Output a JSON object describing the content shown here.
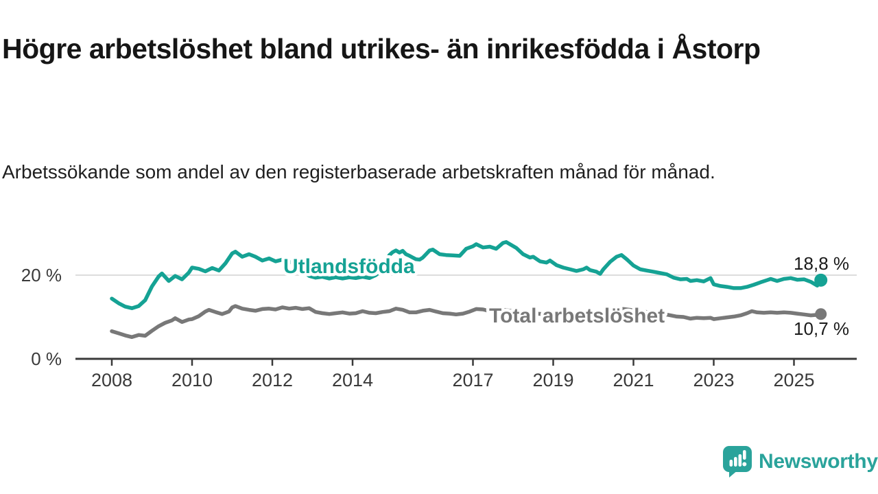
{
  "title": "Högre arbetslöshet bland utrikes- än inrikesfödda i Åstorp",
  "subtitle": "Arbetssökande som andel av den registerbaserade arbetskraften månad för månad.",
  "branding": {
    "logo_text": "Newsworthy",
    "logo_icon": "newsworthy-speech-bubble-bar-chart-icon",
    "logo_color": "#2aa39b"
  },
  "chart_data": {
    "type": "line",
    "title": "Högre arbetslöshet bland utrikes- än inrikesfödda i Åstorp",
    "subtitle": "Arbetssökande som andel av den registerbaserade arbetskraften månad för månad.",
    "unit": "%",
    "xlim": [
      2007.1,
      2026.55
    ],
    "ylim": [
      0,
      31.6
    ],
    "grid": "single-horizontal-gridline-at-20",
    "gridlines": [
      20
    ],
    "gridline_color": "#dcdcdc",
    "axis_color": "#3a3a3a",
    "x_ticks": [
      2008,
      2010,
      2012,
      2014,
      2017,
      2019,
      2021,
      2023,
      2025
    ],
    "y_ticks": [
      {
        "value": 20,
        "label": "20 %"
      },
      {
        "value": 0,
        "label": "0 %"
      }
    ],
    "legend_position": "inline-labels-on-lines",
    "series": [
      {
        "name": "Utlandsfödda",
        "color": "#15a294",
        "end_label": "18,8 %",
        "end_value": 18.8,
        "points": [
          [
            2008.0,
            14.4
          ],
          [
            2008.17,
            13.3
          ],
          [
            2008.33,
            12.5
          ],
          [
            2008.5,
            12.1
          ],
          [
            2008.67,
            12.6
          ],
          [
            2008.83,
            14.0
          ],
          [
            2009.0,
            17.3
          ],
          [
            2009.17,
            19.7
          ],
          [
            2009.25,
            20.4
          ],
          [
            2009.42,
            18.6
          ],
          [
            2009.58,
            19.8
          ],
          [
            2009.75,
            19.0
          ],
          [
            2009.92,
            20.6
          ],
          [
            2010.0,
            21.8
          ],
          [
            2010.17,
            21.5
          ],
          [
            2010.33,
            20.9
          ],
          [
            2010.5,
            21.7
          ],
          [
            2010.67,
            21.1
          ],
          [
            2010.83,
            22.8
          ],
          [
            2011.0,
            25.2
          ],
          [
            2011.08,
            25.6
          ],
          [
            2011.25,
            24.4
          ],
          [
            2011.42,
            25.0
          ],
          [
            2011.58,
            24.4
          ],
          [
            2011.75,
            23.5
          ],
          [
            2011.92,
            24.0
          ],
          [
            2012.08,
            23.3
          ],
          [
            2012.25,
            23.7
          ],
          [
            2012.42,
            23.0
          ],
          [
            2012.58,
            23.4
          ],
          [
            2012.75,
            21.0
          ],
          [
            2012.92,
            19.8
          ],
          [
            2013.08,
            19.4
          ],
          [
            2013.25,
            19.6
          ],
          [
            2013.42,
            19.2
          ],
          [
            2013.58,
            19.5
          ],
          [
            2013.75,
            19.2
          ],
          [
            2013.92,
            19.5
          ],
          [
            2014.08,
            19.3
          ],
          [
            2014.25,
            19.6
          ],
          [
            2014.42,
            19.3
          ],
          [
            2014.58,
            20.0
          ],
          [
            2014.75,
            21.5
          ],
          [
            2014.83,
            23.5
          ],
          [
            2014.92,
            24.8
          ],
          [
            2015.0,
            25.5
          ],
          [
            2015.08,
            25.9
          ],
          [
            2015.17,
            25.4
          ],
          [
            2015.25,
            25.8
          ],
          [
            2015.33,
            25.0
          ],
          [
            2015.42,
            24.6
          ],
          [
            2015.5,
            24.2
          ],
          [
            2015.58,
            23.8
          ],
          [
            2015.67,
            23.7
          ],
          [
            2015.75,
            24.2
          ],
          [
            2015.83,
            25.0
          ],
          [
            2015.92,
            25.9
          ],
          [
            2016.0,
            26.1
          ],
          [
            2016.17,
            25.0
          ],
          [
            2016.33,
            24.8
          ],
          [
            2016.5,
            24.7
          ],
          [
            2016.67,
            24.6
          ],
          [
            2016.83,
            26.3
          ],
          [
            2017.0,
            26.9
          ],
          [
            2017.08,
            27.4
          ],
          [
            2017.25,
            26.6
          ],
          [
            2017.42,
            26.8
          ],
          [
            2017.58,
            26.3
          ],
          [
            2017.75,
            27.7
          ],
          [
            2017.83,
            27.9
          ],
          [
            2017.92,
            27.4
          ],
          [
            2018.08,
            26.5
          ],
          [
            2018.25,
            25.0
          ],
          [
            2018.42,
            24.2
          ],
          [
            2018.5,
            24.4
          ],
          [
            2018.67,
            23.3
          ],
          [
            2018.83,
            23.0
          ],
          [
            2018.92,
            23.5
          ],
          [
            2019.08,
            22.4
          ],
          [
            2019.25,
            21.8
          ],
          [
            2019.42,
            21.4
          ],
          [
            2019.58,
            21.0
          ],
          [
            2019.75,
            21.4
          ],
          [
            2019.83,
            21.8
          ],
          [
            2019.92,
            21.2
          ],
          [
            2020.08,
            20.8
          ],
          [
            2020.17,
            20.3
          ],
          [
            2020.25,
            21.4
          ],
          [
            2020.42,
            23.2
          ],
          [
            2020.58,
            24.4
          ],
          [
            2020.7,
            24.8
          ],
          [
            2020.83,
            23.8
          ],
          [
            2021.0,
            22.3
          ],
          [
            2021.17,
            21.4
          ],
          [
            2021.33,
            21.1
          ],
          [
            2021.5,
            20.8
          ],
          [
            2021.67,
            20.5
          ],
          [
            2021.83,
            20.2
          ],
          [
            2022.0,
            19.4
          ],
          [
            2022.17,
            19.0
          ],
          [
            2022.33,
            19.1
          ],
          [
            2022.42,
            18.6
          ],
          [
            2022.58,
            18.8
          ],
          [
            2022.75,
            18.5
          ],
          [
            2022.92,
            19.3
          ],
          [
            2023.0,
            17.8
          ],
          [
            2023.17,
            17.4
          ],
          [
            2023.33,
            17.2
          ],
          [
            2023.5,
            16.9
          ],
          [
            2023.67,
            16.9
          ],
          [
            2023.83,
            17.2
          ],
          [
            2024.0,
            17.7
          ],
          [
            2024.17,
            18.3
          ],
          [
            2024.33,
            18.8
          ],
          [
            2024.42,
            19.1
          ],
          [
            2024.58,
            18.6
          ],
          [
            2024.75,
            19.1
          ],
          [
            2024.92,
            19.3
          ],
          [
            2025.08,
            18.9
          ],
          [
            2025.25,
            19.0
          ],
          [
            2025.42,
            18.4
          ],
          [
            2025.58,
            17.5
          ],
          [
            2025.67,
            18.8
          ]
        ]
      },
      {
        "name": "Total arbetslöshet",
        "color": "#787878",
        "end_label": "10,7 %",
        "end_value": 10.7,
        "points": [
          [
            2008.0,
            6.6
          ],
          [
            2008.17,
            6.1
          ],
          [
            2008.33,
            5.6
          ],
          [
            2008.5,
            5.2
          ],
          [
            2008.67,
            5.7
          ],
          [
            2008.83,
            5.5
          ],
          [
            2009.0,
            6.7
          ],
          [
            2009.17,
            7.8
          ],
          [
            2009.33,
            8.6
          ],
          [
            2009.5,
            9.2
          ],
          [
            2009.58,
            9.7
          ],
          [
            2009.75,
            8.8
          ],
          [
            2009.92,
            9.4
          ],
          [
            2010.0,
            9.5
          ],
          [
            2010.17,
            10.2
          ],
          [
            2010.33,
            11.3
          ],
          [
            2010.42,
            11.7
          ],
          [
            2010.58,
            11.2
          ],
          [
            2010.75,
            10.7
          ],
          [
            2010.92,
            11.3
          ],
          [
            2011.0,
            12.3
          ],
          [
            2011.08,
            12.6
          ],
          [
            2011.25,
            12.0
          ],
          [
            2011.42,
            11.7
          ],
          [
            2011.58,
            11.5
          ],
          [
            2011.75,
            11.9
          ],
          [
            2011.92,
            12.0
          ],
          [
            2012.08,
            11.8
          ],
          [
            2012.25,
            12.3
          ],
          [
            2012.42,
            12.0
          ],
          [
            2012.58,
            12.2
          ],
          [
            2012.75,
            11.9
          ],
          [
            2012.92,
            12.1
          ],
          [
            2013.08,
            11.2
          ],
          [
            2013.25,
            10.9
          ],
          [
            2013.42,
            10.7
          ],
          [
            2013.58,
            10.9
          ],
          [
            2013.75,
            11.1
          ],
          [
            2013.92,
            10.8
          ],
          [
            2014.08,
            10.9
          ],
          [
            2014.25,
            11.4
          ],
          [
            2014.42,
            11.0
          ],
          [
            2014.58,
            10.9
          ],
          [
            2014.75,
            11.2
          ],
          [
            2014.92,
            11.4
          ],
          [
            2015.08,
            12.0
          ],
          [
            2015.25,
            11.7
          ],
          [
            2015.42,
            11.1
          ],
          [
            2015.58,
            11.1
          ],
          [
            2015.75,
            11.5
          ],
          [
            2015.92,
            11.7
          ],
          [
            2016.08,
            11.3
          ],
          [
            2016.25,
            10.9
          ],
          [
            2016.42,
            10.8
          ],
          [
            2016.58,
            10.6
          ],
          [
            2016.75,
            10.8
          ],
          [
            2016.92,
            11.3
          ],
          [
            2017.08,
            11.9
          ],
          [
            2017.25,
            11.8
          ],
          [
            2017.42,
            11.4
          ],
          [
            2017.58,
            11.5
          ],
          [
            2017.75,
            11.7
          ],
          [
            2017.92,
            11.5
          ],
          [
            2018.08,
            11.3
          ],
          [
            2018.25,
            11.1
          ],
          [
            2018.42,
            10.9
          ],
          [
            2018.58,
            10.8
          ],
          [
            2018.75,
            10.7
          ],
          [
            2018.92,
            10.8
          ],
          [
            2019.08,
            10.6
          ],
          [
            2019.25,
            10.4
          ],
          [
            2019.42,
            10.3
          ],
          [
            2019.58,
            10.4
          ],
          [
            2019.75,
            10.5
          ],
          [
            2019.92,
            10.6
          ],
          [
            2020.08,
            10.8
          ],
          [
            2020.25,
            11.2
          ],
          [
            2020.42,
            11.6
          ],
          [
            2020.58,
            11.8
          ],
          [
            2020.75,
            11.9
          ],
          [
            2020.92,
            11.7
          ],
          [
            2021.08,
            11.5
          ],
          [
            2021.25,
            11.3
          ],
          [
            2021.42,
            11.1
          ],
          [
            2021.58,
            10.9
          ],
          [
            2021.75,
            10.7
          ],
          [
            2021.92,
            10.4
          ],
          [
            2022.08,
            10.1
          ],
          [
            2022.25,
            10.0
          ],
          [
            2022.42,
            9.6
          ],
          [
            2022.58,
            9.8
          ],
          [
            2022.75,
            9.7
          ],
          [
            2022.92,
            9.8
          ],
          [
            2023.0,
            9.5
          ],
          [
            2023.17,
            9.7
          ],
          [
            2023.33,
            9.9
          ],
          [
            2023.5,
            10.1
          ],
          [
            2023.67,
            10.4
          ],
          [
            2023.83,
            10.9
          ],
          [
            2023.95,
            11.4
          ],
          [
            2024.08,
            11.1
          ],
          [
            2024.25,
            11.0
          ],
          [
            2024.42,
            11.1
          ],
          [
            2024.58,
            11.0
          ],
          [
            2024.75,
            11.1
          ],
          [
            2024.92,
            11.0
          ],
          [
            2025.08,
            10.8
          ],
          [
            2025.25,
            10.6
          ],
          [
            2025.42,
            10.4
          ],
          [
            2025.58,
            10.5
          ],
          [
            2025.67,
            10.7
          ]
        ]
      }
    ]
  }
}
